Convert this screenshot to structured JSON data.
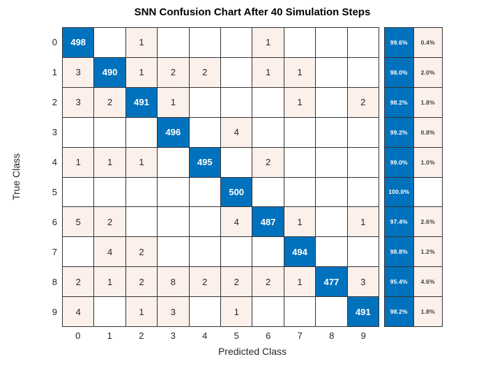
{
  "title": "SNN Confusion Chart After 40 Simulation Steps",
  "chart_data": {
    "type": "heatmap",
    "title": "SNN Confusion Chart After 40 Simulation Steps",
    "xlabel": "Predicted Class",
    "ylabel": "True Class",
    "x_tick_labels": [
      "0",
      "1",
      "2",
      "3",
      "4",
      "5",
      "6",
      "7",
      "8",
      "9"
    ],
    "y_tick_labels": [
      "0",
      "1",
      "2",
      "3",
      "4",
      "5",
      "6",
      "7",
      "8",
      "9"
    ],
    "matrix": [
      [
        498,
        0,
        1,
        0,
        0,
        0,
        1,
        0,
        0,
        0
      ],
      [
        3,
        490,
        1,
        2,
        2,
        0,
        1,
        1,
        0,
        0
      ],
      [
        3,
        2,
        491,
        1,
        0,
        0,
        0,
        1,
        0,
        2
      ],
      [
        0,
        0,
        0,
        496,
        0,
        4,
        0,
        0,
        0,
        0
      ],
      [
        1,
        1,
        1,
        0,
        495,
        0,
        2,
        0,
        0,
        0
      ],
      [
        0,
        0,
        0,
        0,
        0,
        500,
        0,
        0,
        0,
        0
      ],
      [
        5,
        2,
        0,
        0,
        0,
        4,
        487,
        1,
        0,
        1
      ],
      [
        0,
        4,
        2,
        0,
        0,
        0,
        0,
        494,
        0,
        0
      ],
      [
        2,
        1,
        2,
        8,
        2,
        2,
        2,
        1,
        477,
        3
      ],
      [
        4,
        0,
        1,
        3,
        0,
        1,
        0,
        0,
        0,
        491
      ]
    ],
    "row_summary_correct": [
      "99.6%",
      "98.0%",
      "98.2%",
      "99.2%",
      "99.0%",
      "100.0%",
      "97.4%",
      "98.8%",
      "95.4%",
      "98.2%"
    ],
    "row_summary_incorrect": [
      "0.4%",
      "2.0%",
      "1.8%",
      "0.8%",
      "1.0%",
      "",
      "2.6%",
      "1.2%",
      "4.6%",
      "1.8%"
    ],
    "legend_position": "right-row-summary",
    "grid": true,
    "colors": {
      "diagonal": "#0072BD",
      "off_diagonal": "#FCF0EB",
      "grid": "#333333",
      "diagonal_text": "#FFFFFF",
      "cell_text": "#262626",
      "tick_text": "#262626",
      "title_text": "#000000",
      "background": "#FFFFFF"
    }
  }
}
